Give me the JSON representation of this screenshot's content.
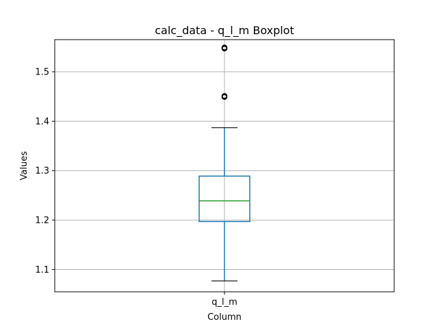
{
  "chart_data": {
    "type": "boxplot",
    "title": "calc_data - q_l_m Boxplot",
    "xlabel": "Column",
    "ylabel": "Values",
    "categories": [
      "q_l_m"
    ],
    "ylim": [
      1.055,
      1.565
    ],
    "yticks": [
      1.1,
      1.2,
      1.3,
      1.4,
      1.5
    ],
    "ytick_labels": [
      "1.1",
      "1.2",
      "1.3",
      "1.4",
      "1.5"
    ],
    "grid": true,
    "boxes": [
      {
        "name": "q_l_m",
        "whisker_low": 1.077,
        "q1": 1.197,
        "median": 1.239,
        "q3": 1.289,
        "whisker_high": 1.387,
        "outliers": [
          1.449,
          1.451,
          1.547,
          1.549
        ]
      }
    ],
    "colors": {
      "box": "#1f77b4",
      "median": "#2ca02c",
      "whisker_cap": "#000000",
      "outlier": "#000000",
      "grid": "#b0b0b0"
    }
  }
}
